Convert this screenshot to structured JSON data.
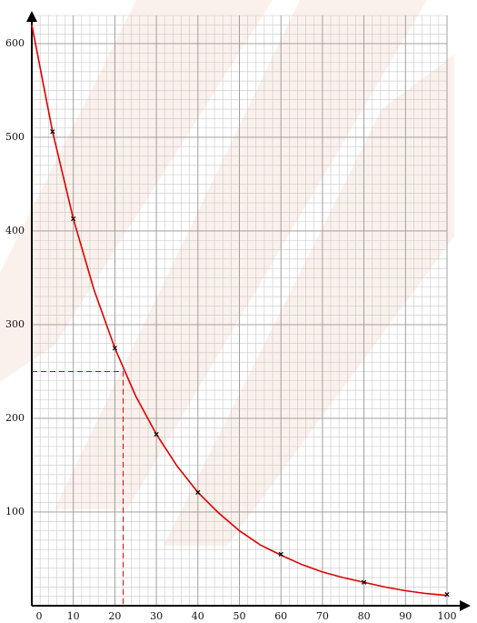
{
  "chart_data": {
    "type": "line",
    "xlim": [
      0,
      100
    ],
    "ylim": [
      0,
      630
    ],
    "xticks": [
      0,
      10,
      20,
      30,
      40,
      50,
      60,
      70,
      80,
      90,
      100
    ],
    "yticks": [
      100,
      200,
      300,
      400,
      500,
      600
    ],
    "grid": true,
    "series": [
      {
        "color": "#e00000",
        "line": true,
        "x": [
          0,
          5,
          10,
          15,
          20,
          25,
          30,
          35,
          40,
          45,
          50,
          55,
          60,
          65,
          70,
          75,
          80,
          85,
          90,
          95,
          100
        ],
        "values": [
          620,
          506,
          413,
          337,
          275,
          224,
          183,
          149,
          121,
          99,
          80,
          65,
          54,
          44,
          36,
          30,
          25,
          20,
          16,
          13,
          11
        ]
      },
      {
        "color": "#000000",
        "marker": "x",
        "x": [
          5,
          10,
          20,
          30,
          40,
          60,
          80,
          100
        ],
        "values": [
          506,
          413,
          275,
          183,
          121,
          55,
          25,
          12
        ]
      }
    ],
    "guide": {
      "x": 22,
      "y": 250,
      "color": "#e00000"
    }
  }
}
